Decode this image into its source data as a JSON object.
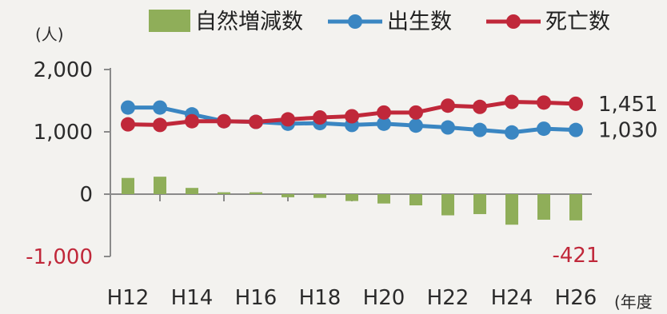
{
  "chart_data": {
    "type": "bar+line",
    "x": [
      "H12",
      "H13",
      "H14",
      "H15",
      "H16",
      "H17",
      "H18",
      "H19",
      "H20",
      "H21",
      "H22",
      "H23",
      "H24",
      "H25",
      "H26"
    ],
    "x_tick_labels": [
      "H12",
      "H14",
      "H16",
      "H18",
      "H20",
      "H22",
      "H24",
      "H26"
    ],
    "y_unit": "(人)",
    "x_unit": "(年度",
    "ylim": [
      -1000,
      2000
    ],
    "y_ticks": [
      {
        "value": 2000,
        "label": "2,000"
      },
      {
        "value": 1000,
        "label": "1,000"
      },
      {
        "value": 0,
        "label": "0"
      },
      {
        "value": -1000,
        "label": "-1,000"
      }
    ],
    "legend_position": "top",
    "series": [
      {
        "name": "自然増減数",
        "kind": "bar",
        "color": "#8fae59",
        "values": [
          260,
          280,
          100,
          30,
          30,
          -50,
          -60,
          -110,
          -150,
          -180,
          -340,
          -320,
          -490,
          -410,
          -421
        ]
      },
      {
        "name": "出生数",
        "kind": "line",
        "color": "#3a86c2",
        "values": [
          1390,
          1390,
          1280,
          1170,
          1160,
          1130,
          1140,
          1110,
          1130,
          1100,
          1070,
          1030,
          990,
          1050,
          1030
        ]
      },
      {
        "name": "死亡数",
        "kind": "line",
        "color": "#c0283a",
        "values": [
          1120,
          1110,
          1170,
          1170,
          1160,
          1200,
          1230,
          1250,
          1310,
          1310,
          1420,
          1400,
          1480,
          1470,
          1451
        ]
      }
    ],
    "end_labels": [
      {
        "series": "死亡数",
        "text": "1,451"
      },
      {
        "series": "出生数",
        "text": "1,030"
      },
      {
        "series": "自然増減数",
        "text": "-421"
      }
    ]
  }
}
